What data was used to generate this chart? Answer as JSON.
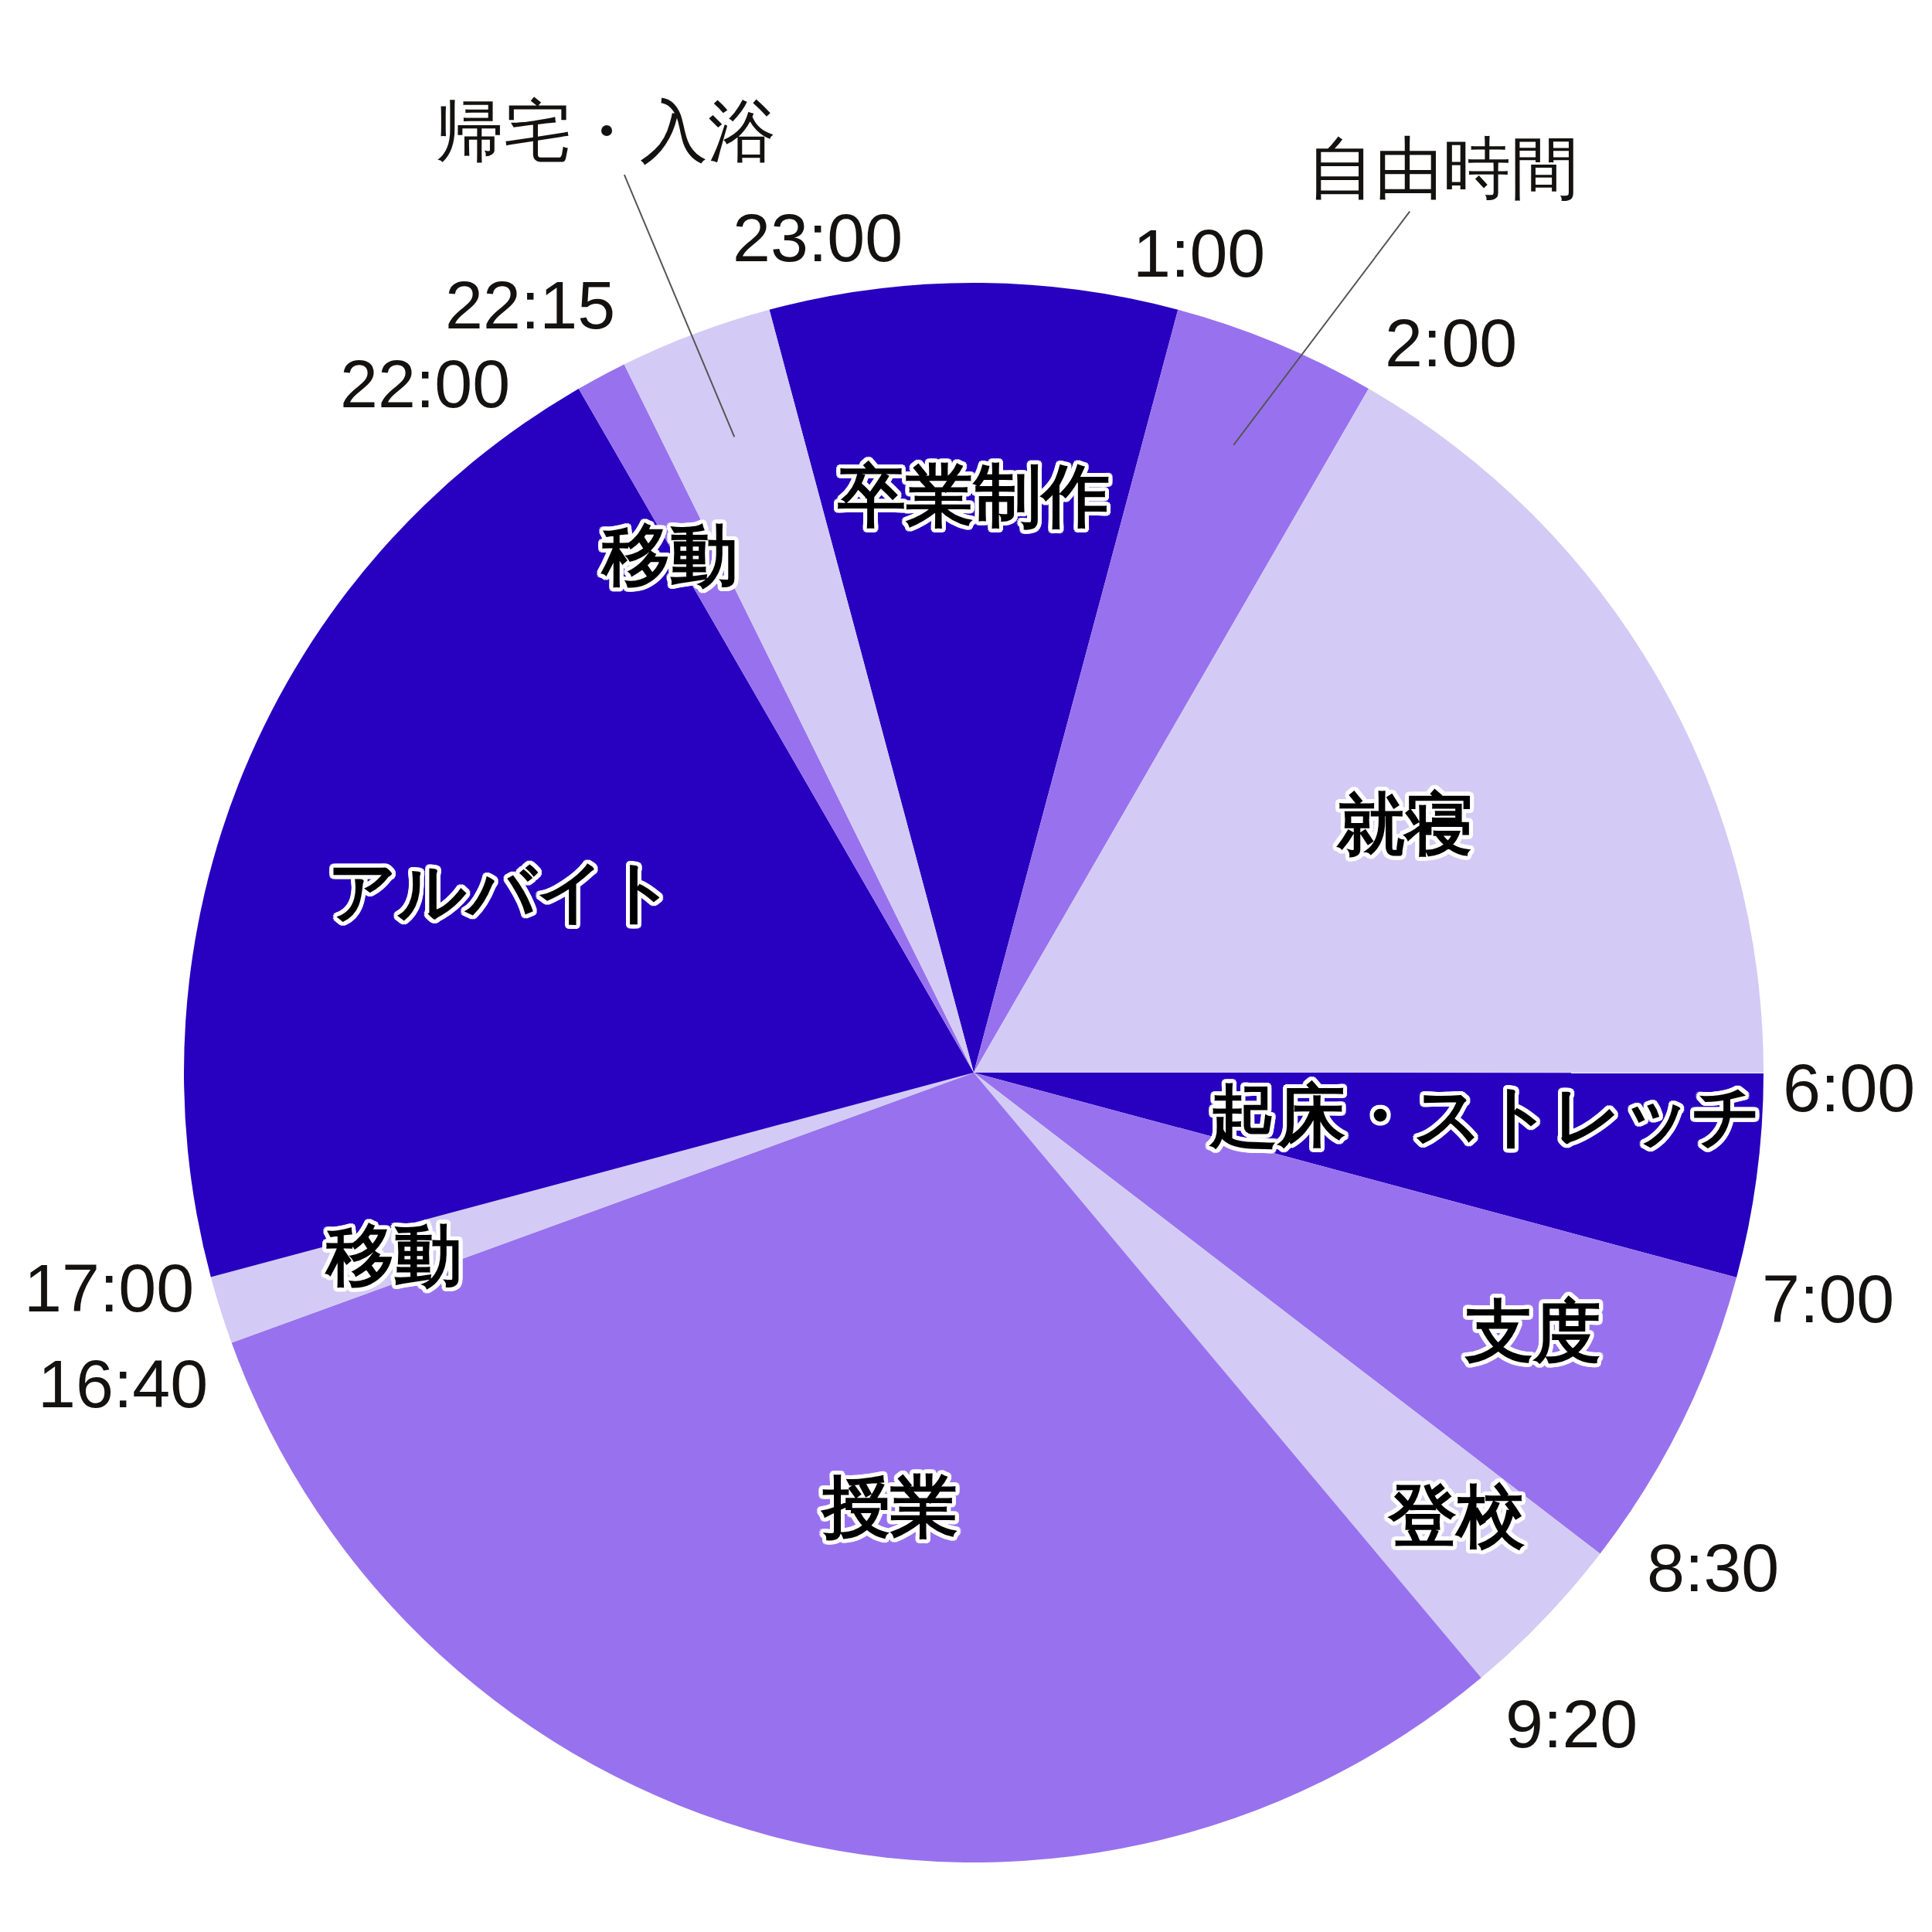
{
  "chart_data": {
    "type": "pie",
    "categories": [
      "卒業制作",
      "自由時間",
      "就寝",
      "起床・ストレッチ",
      "支度",
      "登校",
      "授業",
      "移動",
      "アルバイト",
      "移動",
      "帰宅・入浴"
    ],
    "values": [
      8.33,
      4.17,
      16.67,
      4.17,
      6.25,
      3.47,
      30.55,
      1.39,
      20.83,
      1.04,
      3.13
    ],
    "colors": [
      "#2800c0",
      "#9872ee",
      "#d3cbf5",
      "#2800c0",
      "#9872ee",
      "#d3cbf5",
      "#9872ee",
      "#d3cbf5",
      "#2800c0",
      "#9872ee",
      "#d3cbf5"
    ],
    "annotations": [
      "23:00",
      "1:00",
      "2:00",
      "6:00",
      "7:00",
      "8:30",
      "9:20",
      "16:40",
      "17:00",
      "22:00",
      "22:15"
    ]
  }
}
